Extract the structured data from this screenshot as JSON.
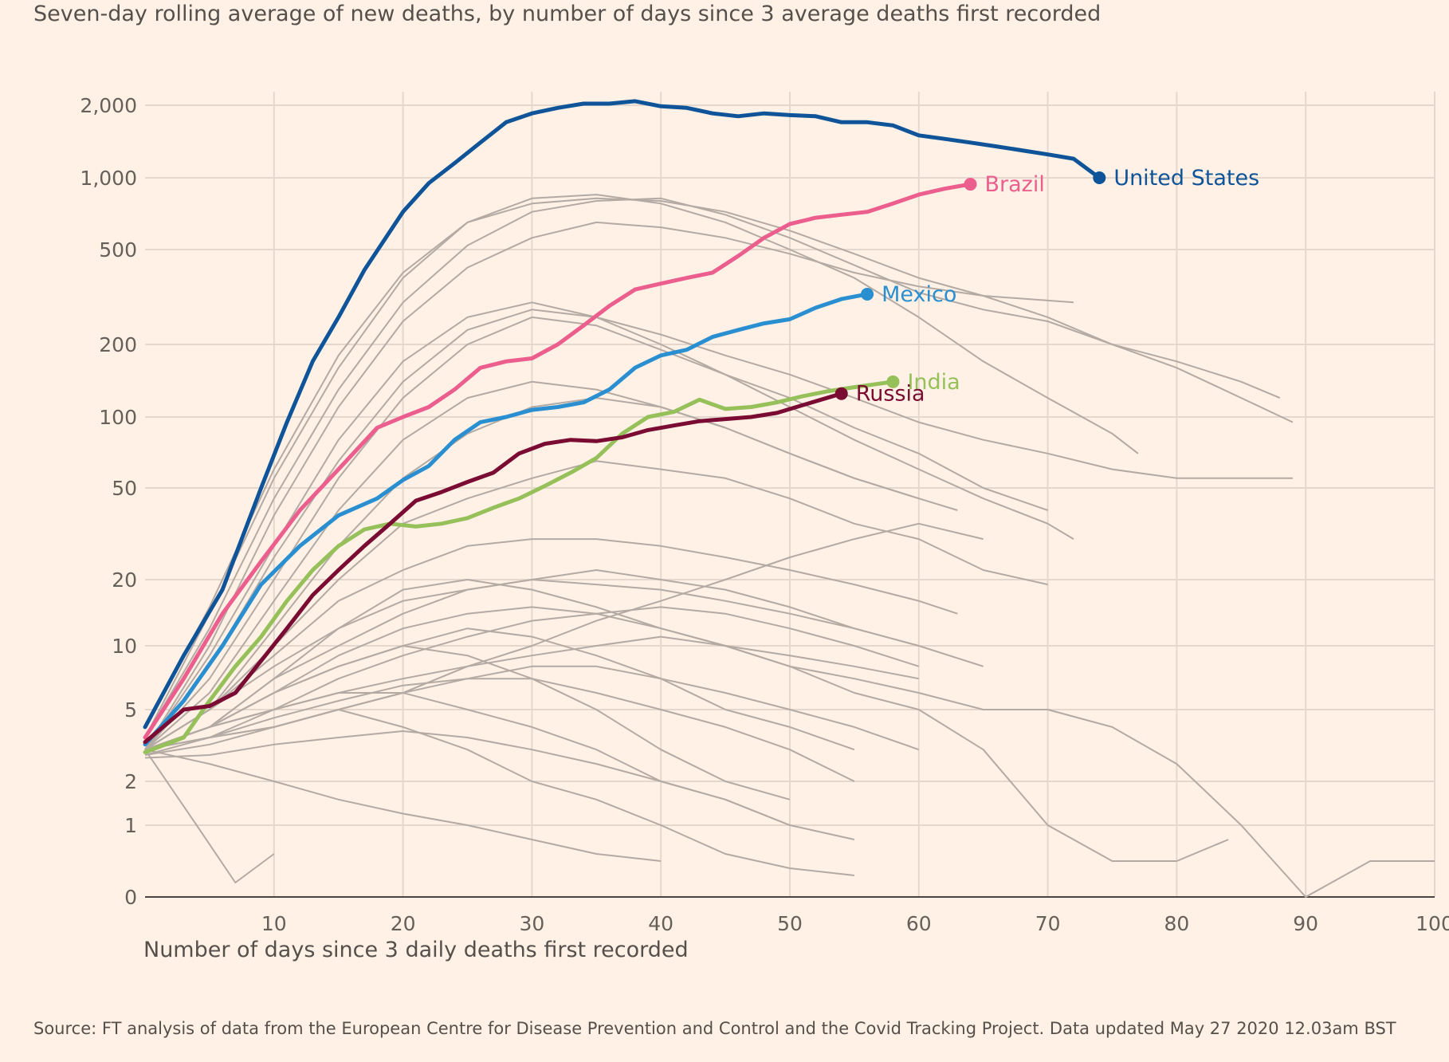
{
  "subtitle": "Seven-day rolling average of new deaths, by number of days since 3 average deaths first recorded",
  "source": "Source: FT analysis of data from the European Centre for Disease Prevention and Control and the Covid Tracking Project. Data updated May 27 2020 12.03am BST",
  "colors": {
    "background": "#fff1e5",
    "grid": "#e4d8ce",
    "axis": "#4a4440",
    "other_countries": "#b3aaa4",
    "United States": "#0f5499",
    "Brazil": "#eb5e8d",
    "Mexico": "#2a8fd1",
    "India": "#96c05a",
    "Russia": "#7a0b32"
  },
  "chart_data": {
    "type": "line",
    "xlabel": "Number of days since 3 daily deaths first recorded",
    "ylabel": "",
    "yscale": "log",
    "xlim": [
      0,
      100
    ],
    "ylim": [
      0,
      2000
    ],
    "x_ticks": [
      10,
      20,
      30,
      40,
      50,
      60,
      70,
      80,
      90,
      100
    ],
    "x_tick_labels": [
      "10",
      "20",
      "30",
      "40",
      "50",
      "60",
      "70",
      "80",
      "90",
      "100"
    ],
    "y_ticks": [
      0,
      1,
      2,
      5,
      10,
      20,
      50,
      100,
      200,
      500,
      1000,
      2000
    ],
    "y_tick_labels": [
      "0",
      "1",
      "2",
      "5",
      "10",
      "20",
      "50",
      "100",
      "200",
      "500",
      "1,000",
      "2,000"
    ],
    "grid": true,
    "highlighted_series": [
      {
        "name": "United States",
        "label": "United States",
        "x": [
          0,
          3,
          6,
          9,
          11,
          13,
          15,
          17,
          20,
          22,
          24,
          26,
          28,
          30,
          32,
          34,
          36,
          38,
          40,
          42,
          44,
          46,
          48,
          50,
          52,
          54,
          56,
          58,
          60,
          62,
          64,
          66,
          68,
          70,
          72,
          74
        ],
        "y": [
          4,
          9,
          18,
          50,
          95,
          170,
          260,
          410,
          720,
          950,
          1150,
          1400,
          1700,
          1850,
          1950,
          2030,
          2030,
          2080,
          1980,
          1950,
          1850,
          1800,
          1850,
          1820,
          1800,
          1700,
          1700,
          1650,
          1500,
          1450,
          1400,
          1350,
          1300,
          1250,
          1200,
          1000
        ]
      },
      {
        "name": "Brazil",
        "label": "Brazil",
        "x": [
          0,
          3,
          6,
          9,
          12,
          15,
          18,
          20,
          22,
          24,
          26,
          28,
          30,
          32,
          34,
          36,
          38,
          40,
          42,
          44,
          46,
          48,
          50,
          52,
          54,
          56,
          58,
          60,
          62,
          64
        ],
        "y": [
          3.5,
          7,
          14,
          24,
          40,
          60,
          90,
          100,
          110,
          130,
          160,
          170,
          175,
          200,
          240,
          290,
          340,
          360,
          380,
          400,
          470,
          560,
          640,
          680,
          700,
          720,
          780,
          850,
          900,
          940
        ]
      },
      {
        "name": "Mexico",
        "label": "Mexico",
        "x": [
          0,
          3,
          6,
          9,
          12,
          15,
          18,
          20,
          22,
          24,
          26,
          28,
          30,
          32,
          34,
          36,
          38,
          40,
          42,
          44,
          46,
          48,
          50,
          52,
          54,
          56
        ],
        "y": [
          3.2,
          5.5,
          10,
          19,
          28,
          38,
          45,
          54,
          62,
          80,
          95,
          100,
          107,
          110,
          115,
          130,
          160,
          180,
          190,
          215,
          230,
          245,
          255,
          285,
          310,
          325
        ]
      },
      {
        "name": "India",
        "label": "India",
        "x": [
          0,
          3,
          5,
          7,
          9,
          11,
          13,
          15,
          17,
          19,
          21,
          23,
          25,
          27,
          29,
          31,
          33,
          35,
          37,
          39,
          41,
          43,
          45,
          47,
          49,
          51,
          53,
          55,
          58
        ],
        "y": [
          2.9,
          3.5,
          5.5,
          8,
          11,
          16,
          22,
          28,
          33,
          35,
          34,
          35,
          37,
          41,
          45,
          51,
          58,
          67,
          85,
          100,
          105,
          118,
          108,
          110,
          115,
          122,
          128,
          133,
          140
        ]
      },
      {
        "name": "Russia",
        "label": "Russia",
        "x": [
          0,
          3,
          5,
          7,
          9,
          11,
          13,
          15,
          17,
          19,
          21,
          23,
          25,
          27,
          29,
          31,
          33,
          35,
          37,
          39,
          41,
          43,
          45,
          47,
          49,
          51,
          54
        ],
        "y": [
          3.3,
          5,
          5.2,
          6,
          8.5,
          12,
          17,
          22,
          28,
          35,
          44,
          48,
          53,
          58,
          70,
          77,
          80,
          79,
          82,
          88,
          92,
          96,
          98,
          100,
          104,
          112,
          125
        ]
      }
    ],
    "other_series": [
      {
        "x": [
          0,
          5,
          10,
          15,
          20,
          25,
          30,
          35,
          40,
          45,
          50,
          55,
          60,
          65,
          70,
          75,
          80,
          85,
          88
        ],
        "y": [
          4,
          15,
          60,
          180,
          400,
          650,
          780,
          820,
          800,
          720,
          600,
          480,
          380,
          320,
          260,
          200,
          170,
          140,
          120
        ]
      },
      {
        "x": [
          0,
          5,
          10,
          15,
          20,
          25,
          30,
          35,
          40,
          45,
          50,
          55,
          60,
          65,
          70,
          75,
          77
        ],
        "y": [
          3.5,
          14,
          55,
          160,
          380,
          650,
          820,
          850,
          780,
          650,
          500,
          380,
          260,
          170,
          120,
          85,
          70
        ]
      },
      {
        "x": [
          0,
          5,
          10,
          15,
          20,
          25,
          30,
          35,
          40,
          45,
          50,
          55,
          60,
          65,
          70,
          75,
          80,
          85,
          89
        ],
        "y": [
          3.5,
          12,
          45,
          130,
          300,
          520,
          720,
          800,
          820,
          700,
          560,
          430,
          330,
          280,
          250,
          200,
          160,
          120,
          95
        ]
      },
      {
        "x": [
          0,
          5,
          10,
          15,
          20,
          25,
          30,
          35,
          40,
          45,
          50,
          55,
          60,
          65,
          72
        ],
        "y": [
          3,
          10,
          38,
          110,
          250,
          420,
          560,
          650,
          620,
          560,
          480,
          400,
          350,
          320,
          300
        ]
      },
      {
        "x": [
          0,
          5,
          10,
          15,
          20,
          25,
          30,
          35,
          40,
          45,
          50,
          55,
          60,
          65,
          70,
          75,
          80,
          85,
          89
        ],
        "y": [
          3,
          8,
          25,
          65,
          140,
          230,
          280,
          260,
          220,
          180,
          150,
          120,
          95,
          80,
          70,
          60,
          55,
          55,
          55
        ]
      },
      {
        "x": [
          0,
          5,
          10,
          15,
          20,
          25,
          30,
          35,
          40,
          45,
          50,
          55,
          60,
          65,
          70
        ],
        "y": [
          3,
          7,
          20,
          55,
          120,
          200,
          260,
          240,
          190,
          150,
          120,
          90,
          70,
          50,
          40
        ]
      },
      {
        "x": [
          0,
          5,
          10,
          15,
          20,
          25,
          30,
          35,
          40,
          45,
          50,
          55,
          60,
          65,
          70,
          72
        ],
        "y": [
          3,
          9,
          28,
          80,
          170,
          260,
          300,
          260,
          200,
          150,
          110,
          80,
          60,
          45,
          35,
          30
        ]
      },
      {
        "x": [
          0,
          5,
          10,
          15,
          20,
          25,
          30,
          35,
          40,
          45,
          50,
          55,
          60,
          63
        ],
        "y": [
          3,
          6,
          16,
          40,
          80,
          120,
          140,
          130,
          110,
          90,
          70,
          55,
          45,
          40
        ]
      },
      {
        "x": [
          0,
          5,
          10,
          15,
          20,
          25,
          30,
          35,
          40,
          45,
          50,
          55,
          60
        ],
        "y": [
          3,
          5,
          12,
          28,
          55,
          85,
          110,
          120,
          110,
          90,
          70,
          55,
          45
        ]
      },
      {
        "x": [
          0,
          5,
          10,
          15,
          20,
          25,
          30,
          35,
          40,
          45,
          50,
          55,
          60,
          65,
          70
        ],
        "y": [
          3,
          5,
          10,
          20,
          35,
          45,
          55,
          65,
          60,
          55,
          45,
          35,
          30,
          22,
          19
        ]
      },
      {
        "x": [
          0,
          5,
          10,
          15,
          20,
          25,
          30,
          35,
          40,
          45,
          50,
          55,
          60,
          65,
          70,
          75,
          80,
          85,
          90,
          95,
          100
        ],
        "y": [
          3,
          4,
          7,
          12,
          18,
          20,
          18,
          15,
          12,
          10,
          8,
          7,
          6,
          5,
          5,
          4,
          2.5,
          1,
          0,
          0.5,
          0.5
        ]
      },
      {
        "x": [
          0,
          5,
          10,
          15,
          20,
          25,
          30,
          35,
          40,
          45,
          50,
          55,
          60,
          65,
          70,
          75,
          80,
          84
        ],
        "y": [
          3,
          4,
          6,
          9,
          12,
          14,
          15,
          14,
          12,
          10,
          8,
          6,
          5,
          3,
          1,
          0.5,
          0.5,
          0.8
        ]
      },
      {
        "x": [
          0,
          5,
          10,
          15,
          20,
          25,
          30,
          35,
          40,
          45,
          50,
          55,
          60,
          63
        ],
        "y": [
          3,
          5,
          9,
          16,
          22,
          28,
          30,
          30,
          28,
          25,
          22,
          19,
          16,
          14
        ]
      },
      {
        "x": [
          0,
          5,
          10,
          15,
          20,
          25,
          30,
          35,
          40,
          45,
          50,
          55,
          60
        ],
        "y": [
          3,
          4,
          7,
          10,
          14,
          18,
          20,
          19,
          18,
          16,
          14,
          12,
          10
        ]
      },
      {
        "x": [
          0,
          5,
          10,
          15,
          20,
          25,
          30,
          35,
          40,
          45,
          50,
          55,
          60
        ],
        "y": [
          2.8,
          3.5,
          5,
          7,
          9,
          11,
          13,
          14,
          15,
          14,
          12,
          10,
          8
        ]
      },
      {
        "x": [
          0,
          5,
          10,
          15,
          20,
          25,
          30,
          35,
          40,
          45,
          50,
          55,
          60
        ],
        "y": [
          2.8,
          3.2,
          4,
          5,
          6,
          7,
          8,
          8,
          7,
          6,
          5,
          4,
          3
        ]
      },
      {
        "x": [
          0,
          5,
          10,
          15,
          20,
          25,
          30,
          35,
          40,
          45,
          50,
          55
        ],
        "y": [
          3,
          4,
          5,
          6,
          6,
          5,
          4,
          3,
          2,
          1.5,
          1,
          0.8
        ]
      },
      {
        "x": [
          0,
          5,
          10,
          15,
          20,
          25,
          30,
          35,
          40,
          45,
          50,
          55
        ],
        "y": [
          3,
          3.5,
          4,
          5,
          4,
          3,
          2,
          1.5,
          1,
          0.6,
          0.4,
          0.3
        ]
      },
      {
        "x": [
          0,
          4,
          7,
          10
        ],
        "y": [
          3,
          1,
          0.2,
          0.6
        ]
      },
      {
        "x": [
          0,
          5,
          10,
          15,
          20,
          25,
          30,
          35,
          40,
          45,
          50
        ],
        "y": [
          3,
          4,
          6,
          8,
          10,
          9,
          7,
          5,
          3,
          2,
          1.5
        ]
      },
      {
        "x": [
          0,
          5,
          10,
          15,
          20,
          25,
          30,
          35,
          40,
          45,
          50
        ],
        "y": [
          2.7,
          2.8,
          3.2,
          3.5,
          3.8,
          3.5,
          3,
          2.5,
          2,
          1.5,
          1
        ]
      },
      {
        "x": [
          0,
          5,
          10,
          15,
          20,
          25,
          30,
          35,
          40,
          45,
          50,
          55
        ],
        "y": [
          3,
          4,
          6,
          8,
          10,
          12,
          11,
          9,
          7,
          5,
          4,
          3
        ]
      },
      {
        "x": [
          0,
          5,
          10,
          15,
          20,
          25,
          30,
          35,
          40,
          45,
          50,
          55
        ],
        "y": [
          3,
          3.5,
          4.5,
          5.5,
          6.5,
          7,
          7,
          6,
          5,
          4,
          3,
          2
        ]
      },
      {
        "x": [
          0,
          5,
          10,
          15,
          20,
          25,
          30,
          35,
          40
        ],
        "y": [
          3,
          2.5,
          2,
          1.5,
          1.2,
          1,
          0.8,
          0.6,
          0.5
        ]
      },
      {
        "x": [
          0,
          5,
          10,
          15,
          20,
          25,
          30,
          35,
          40,
          45,
          50,
          55,
          60,
          65
        ],
        "y": [
          3,
          5,
          8,
          12,
          16,
          18,
          20,
          22,
          20,
          18,
          15,
          12,
          10,
          8
        ]
      },
      {
        "x": [
          0,
          5,
          10,
          15,
          20,
          25,
          30,
          35,
          40,
          45,
          50,
          55,
          60
        ],
        "y": [
          3,
          4,
          5,
          6,
          7,
          8,
          9,
          10,
          11,
          10,
          9,
          8,
          7
        ]
      },
      {
        "x": [
          0,
          5,
          10,
          15,
          20,
          25,
          30,
          35,
          40,
          45,
          50,
          55,
          60,
          65
        ],
        "y": [
          3,
          3.5,
          4,
          5,
          6,
          8,
          10,
          13,
          16,
          20,
          25,
          30,
          35,
          30
        ]
      }
    ]
  }
}
